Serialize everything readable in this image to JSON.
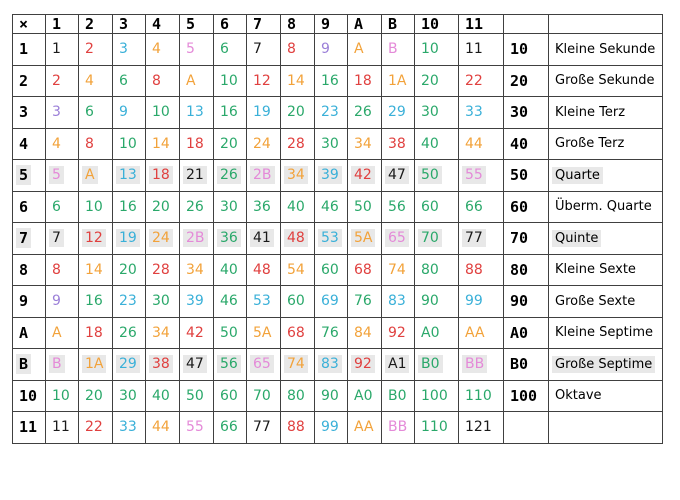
{
  "header": [
    "×",
    "1",
    "2",
    "3",
    "4",
    "5",
    "6",
    "7",
    "8",
    "9",
    "A",
    "B",
    "10",
    "11",
    "",
    ""
  ],
  "colors": {
    "black": "#1a1a1a",
    "red": "#e0403f",
    "orange": "#f2a23a",
    "blue": "#3ab0d8",
    "purple": "#9b7fd8",
    "green": "#2aa86a",
    "pink": "#e48ad8",
    "highlight": "#e8e8e8",
    "border": "#404040"
  },
  "rows": [
    {
      "label": "1",
      "label_hl": false,
      "cells": [
        [
          "1",
          "black",
          false
        ],
        [
          "2",
          "red",
          false
        ],
        [
          "3",
          "blue",
          false
        ],
        [
          "4",
          "orange",
          false
        ],
        [
          "5",
          "pink",
          false
        ],
        [
          "6",
          "green",
          false
        ],
        [
          "7",
          "black",
          false
        ],
        [
          "8",
          "red",
          false
        ],
        [
          "9",
          "purple",
          false
        ],
        [
          "A",
          "orange",
          false
        ],
        [
          "B",
          "pink",
          false
        ],
        [
          "10",
          "green",
          false
        ],
        [
          "11",
          "black",
          false
        ]
      ],
      "abbr": "10",
      "interval": "Kleine Sekunde",
      "interval_hl": false
    },
    {
      "label": "2",
      "label_hl": false,
      "cells": [
        [
          "2",
          "red",
          false
        ],
        [
          "4",
          "orange",
          false
        ],
        [
          "6",
          "green",
          false
        ],
        [
          "8",
          "red",
          false
        ],
        [
          "A",
          "orange",
          false
        ],
        [
          "10",
          "green",
          false
        ],
        [
          "12",
          "red",
          false
        ],
        [
          "14",
          "orange",
          false
        ],
        [
          "16",
          "green",
          false
        ],
        [
          "18",
          "red",
          false
        ],
        [
          "1A",
          "orange",
          false
        ],
        [
          "20",
          "green",
          false
        ],
        [
          "22",
          "red",
          false
        ]
      ],
      "abbr": "20",
      "interval": "Große Sekunde",
      "interval_hl": false
    },
    {
      "label": "3",
      "label_hl": false,
      "cells": [
        [
          "3",
          "purple",
          false
        ],
        [
          "6",
          "green",
          false
        ],
        [
          "9",
          "blue",
          false
        ],
        [
          "10",
          "green",
          false
        ],
        [
          "13",
          "blue",
          false
        ],
        [
          "16",
          "green",
          false
        ],
        [
          "19",
          "blue",
          false
        ],
        [
          "20",
          "green",
          false
        ],
        [
          "23",
          "blue",
          false
        ],
        [
          "26",
          "green",
          false
        ],
        [
          "29",
          "blue",
          false
        ],
        [
          "30",
          "green",
          false
        ],
        [
          "33",
          "blue",
          false
        ]
      ],
      "abbr": "30",
      "interval": "Kleine Terz",
      "interval_hl": false
    },
    {
      "label": "4",
      "label_hl": false,
      "cells": [
        [
          "4",
          "orange",
          false
        ],
        [
          "8",
          "red",
          false
        ],
        [
          "10",
          "green",
          false
        ],
        [
          "14",
          "orange",
          false
        ],
        [
          "18",
          "red",
          false
        ],
        [
          "20",
          "green",
          false
        ],
        [
          "24",
          "orange",
          false
        ],
        [
          "28",
          "red",
          false
        ],
        [
          "30",
          "green",
          false
        ],
        [
          "34",
          "orange",
          false
        ],
        [
          "38",
          "red",
          false
        ],
        [
          "40",
          "green",
          false
        ],
        [
          "44",
          "orange",
          false
        ]
      ],
      "abbr": "40",
      "interval": "Große Terz",
      "interval_hl": false
    },
    {
      "label": "5",
      "label_hl": true,
      "cells": [
        [
          "5",
          "pink",
          true
        ],
        [
          "A",
          "orange",
          true
        ],
        [
          "13",
          "blue",
          true
        ],
        [
          "18",
          "red",
          true
        ],
        [
          "21",
          "black",
          true
        ],
        [
          "26",
          "green",
          true
        ],
        [
          "2B",
          "pink",
          true
        ],
        [
          "34",
          "orange",
          true
        ],
        [
          "39",
          "blue",
          true
        ],
        [
          "42",
          "red",
          true
        ],
        [
          "47",
          "black",
          true
        ],
        [
          "50",
          "green",
          true
        ],
        [
          "55",
          "pink",
          true
        ]
      ],
      "abbr": "50",
      "interval": "Quarte",
      "interval_hl": true
    },
    {
      "label": "6",
      "label_hl": false,
      "cells": [
        [
          "6",
          "green",
          false
        ],
        [
          "10",
          "green",
          false
        ],
        [
          "16",
          "green",
          false
        ],
        [
          "20",
          "green",
          false
        ],
        [
          "26",
          "green",
          false
        ],
        [
          "30",
          "green",
          false
        ],
        [
          "36",
          "green",
          false
        ],
        [
          "40",
          "green",
          false
        ],
        [
          "46",
          "green",
          false
        ],
        [
          "50",
          "green",
          false
        ],
        [
          "56",
          "green",
          false
        ],
        [
          "60",
          "green",
          false
        ],
        [
          "66",
          "green",
          false
        ]
      ],
      "abbr": "60",
      "interval": "Überm. Quarte",
      "interval_hl": false
    },
    {
      "label": "7",
      "label_hl": true,
      "cells": [
        [
          "7",
          "black",
          true
        ],
        [
          "12",
          "red",
          true
        ],
        [
          "19",
          "blue",
          true
        ],
        [
          "24",
          "orange",
          true
        ],
        [
          "2B",
          "pink",
          true
        ],
        [
          "36",
          "green",
          true
        ],
        [
          "41",
          "black",
          true
        ],
        [
          "48",
          "red",
          true
        ],
        [
          "53",
          "blue",
          true
        ],
        [
          "5A",
          "orange",
          true
        ],
        [
          "65",
          "pink",
          true
        ],
        [
          "70",
          "green",
          true
        ],
        [
          "77",
          "black",
          true
        ]
      ],
      "abbr": "70",
      "interval": "Quinte",
      "interval_hl": true
    },
    {
      "label": "8",
      "label_hl": false,
      "cells": [
        [
          "8",
          "red",
          false
        ],
        [
          "14",
          "orange",
          false
        ],
        [
          "20",
          "green",
          false
        ],
        [
          "28",
          "red",
          false
        ],
        [
          "34",
          "orange",
          false
        ],
        [
          "40",
          "green",
          false
        ],
        [
          "48",
          "red",
          false
        ],
        [
          "54",
          "orange",
          false
        ],
        [
          "60",
          "green",
          false
        ],
        [
          "68",
          "red",
          false
        ],
        [
          "74",
          "orange",
          false
        ],
        [
          "80",
          "green",
          false
        ],
        [
          "88",
          "red",
          false
        ]
      ],
      "abbr": "80",
      "interval": "Kleine Sexte",
      "interval_hl": false
    },
    {
      "label": "9",
      "label_hl": false,
      "cells": [
        [
          "9",
          "purple",
          false
        ],
        [
          "16",
          "green",
          false
        ],
        [
          "23",
          "blue",
          false
        ],
        [
          "30",
          "green",
          false
        ],
        [
          "39",
          "blue",
          false
        ],
        [
          "46",
          "green",
          false
        ],
        [
          "53",
          "blue",
          false
        ],
        [
          "60",
          "green",
          false
        ],
        [
          "69",
          "blue",
          false
        ],
        [
          "76",
          "green",
          false
        ],
        [
          "83",
          "blue",
          false
        ],
        [
          "90",
          "green",
          false
        ],
        [
          "99",
          "blue",
          false
        ]
      ],
      "abbr": "90",
      "interval": "Große Sexte",
      "interval_hl": false
    },
    {
      "label": "A",
      "label_hl": false,
      "cells": [
        [
          "A",
          "orange",
          false
        ],
        [
          "18",
          "red",
          false
        ],
        [
          "26",
          "green",
          false
        ],
        [
          "34",
          "orange",
          false
        ],
        [
          "42",
          "red",
          false
        ],
        [
          "50",
          "green",
          false
        ],
        [
          "5A",
          "orange",
          false
        ],
        [
          "68",
          "red",
          false
        ],
        [
          "76",
          "green",
          false
        ],
        [
          "84",
          "orange",
          false
        ],
        [
          "92",
          "red",
          false
        ],
        [
          "A0",
          "green",
          false
        ],
        [
          "AA",
          "orange",
          false
        ]
      ],
      "abbr": "A0",
      "interval": "Kleine Septime",
      "interval_hl": false
    },
    {
      "label": "B",
      "label_hl": true,
      "cells": [
        [
          "B",
          "pink",
          true
        ],
        [
          "1A",
          "orange",
          true
        ],
        [
          "29",
          "blue",
          true
        ],
        [
          "38",
          "red",
          true
        ],
        [
          "47",
          "black",
          true
        ],
        [
          "56",
          "green",
          true
        ],
        [
          "65",
          "pink",
          true
        ],
        [
          "74",
          "orange",
          true
        ],
        [
          "83",
          "blue",
          true
        ],
        [
          "92",
          "red",
          true
        ],
        [
          "A1",
          "black",
          true
        ],
        [
          "B0",
          "green",
          true
        ],
        [
          "BB",
          "pink",
          true
        ]
      ],
      "abbr": "B0",
      "interval": "Große Septime",
      "interval_hl": true
    },
    {
      "label": "10",
      "label_hl": false,
      "cells": [
        [
          "10",
          "green",
          false
        ],
        [
          "20",
          "green",
          false
        ],
        [
          "30",
          "green",
          false
        ],
        [
          "40",
          "green",
          false
        ],
        [
          "50",
          "green",
          false
        ],
        [
          "60",
          "green",
          false
        ],
        [
          "70",
          "green",
          false
        ],
        [
          "80",
          "green",
          false
        ],
        [
          "90",
          "green",
          false
        ],
        [
          "A0",
          "green",
          false
        ],
        [
          "B0",
          "green",
          false
        ],
        [
          "100",
          "green",
          false
        ],
        [
          "110",
          "green",
          false
        ]
      ],
      "abbr": "100",
      "interval": "Oktave",
      "interval_hl": false
    },
    {
      "label": "11",
      "label_hl": false,
      "cells": [
        [
          "11",
          "black",
          false
        ],
        [
          "22",
          "red",
          false
        ],
        [
          "33",
          "blue",
          false
        ],
        [
          "44",
          "orange",
          false
        ],
        [
          "55",
          "pink",
          false
        ],
        [
          "66",
          "green",
          false
        ],
        [
          "77",
          "black",
          false
        ],
        [
          "88",
          "red",
          false
        ],
        [
          "99",
          "blue",
          false
        ],
        [
          "AA",
          "orange",
          false
        ],
        [
          "BB",
          "pink",
          false
        ],
        [
          "110",
          "green",
          false
        ],
        [
          "121",
          "black",
          false
        ]
      ],
      "abbr": "",
      "interval": "",
      "interval_hl": false
    }
  ]
}
